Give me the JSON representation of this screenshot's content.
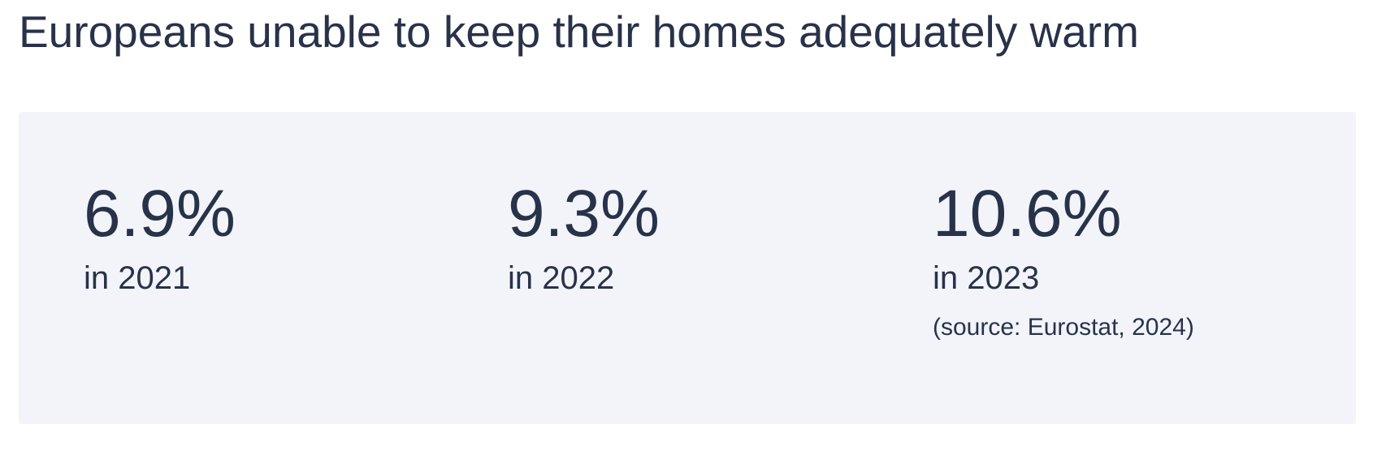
{
  "title": "Europeans unable to keep their homes adequately warm",
  "stats": [
    {
      "value": "6.9%",
      "label": "in 2021"
    },
    {
      "value": "9.3%",
      "label": "in 2022"
    },
    {
      "value": "10.6%",
      "label": "in 2023"
    }
  ],
  "source": "(source: Eurostat, 2024)"
}
